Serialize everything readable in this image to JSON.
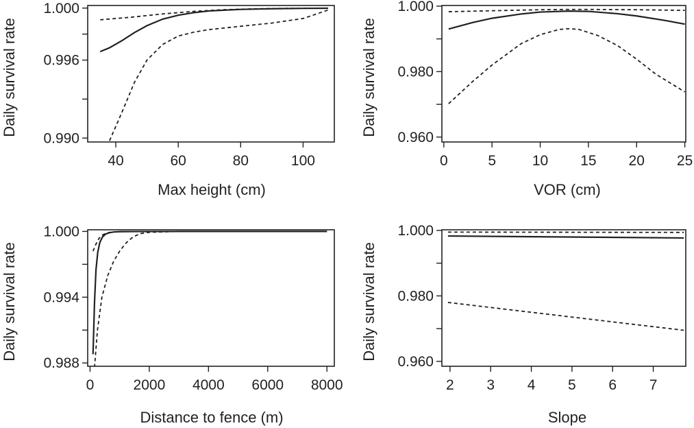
{
  "colors": {
    "ink": "#231f20",
    "background": "#ffffff"
  },
  "chart_data": [
    {
      "type": "line",
      "title": "",
      "xlabel": "Max height (cm)",
      "ylabel": "Daily survival rate",
      "xlim": [
        31,
        110
      ],
      "ylim": [
        0.9897,
        1.0002
      ],
      "x_ticks": [
        40,
        60,
        80,
        100
      ],
      "y_ticks": [
        0.99,
        0.993,
        0.996,
        0.998,
        1.0
      ],
      "y_tick_labels": [
        "0.990",
        "",
        "0.996",
        "",
        "1.000"
      ],
      "grid": false,
      "series": [
        {
          "role": "estimate",
          "style": "solid",
          "x": [
            35,
            38,
            42,
            46,
            50,
            55,
            60,
            65,
            70,
            80,
            90,
            100,
            108
          ],
          "y": [
            0.99665,
            0.99695,
            0.9975,
            0.99812,
            0.99865,
            0.99915,
            0.99945,
            0.99965,
            0.99978,
            0.9999,
            0.99995,
            0.99998,
            0.99999
          ]
        },
        {
          "role": "upper-ci",
          "style": "dashed",
          "x": [
            35,
            45,
            55,
            65,
            75,
            85,
            95,
            108
          ],
          "y": [
            0.9991,
            0.9993,
            0.99955,
            0.99975,
            0.99988,
            0.99995,
            0.99998,
            0.99999
          ]
        },
        {
          "role": "lower-ci",
          "style": "dashed",
          "x": [
            38,
            42,
            46,
            50,
            55,
            60,
            65,
            70,
            80,
            90,
            100,
            108
          ],
          "y": [
            0.9898,
            0.992,
            0.9943,
            0.996,
            0.9972,
            0.99785,
            0.99815,
            0.99835,
            0.9986,
            0.99885,
            0.9992,
            0.99985
          ]
        }
      ]
    },
    {
      "type": "line",
      "title": "",
      "xlabel": "VOR (cm)",
      "ylabel": "Daily survival rate",
      "xlim": [
        -0.2,
        25.1
      ],
      "ylim": [
        0.9585,
        1.0002
      ],
      "x_ticks": [
        0,
        5,
        10,
        15,
        20,
        25
      ],
      "y_ticks": [
        0.96,
        0.97,
        0.98,
        0.99,
        1.0
      ],
      "y_tick_labels": [
        "0.960",
        "",
        "0.980",
        "",
        "1.000"
      ],
      "grid": false,
      "series": [
        {
          "role": "estimate",
          "style": "solid",
          "x": [
            0.5,
            3,
            5,
            8,
            10,
            13,
            15,
            18,
            20,
            23,
            25
          ],
          "y": [
            0.993,
            0.995,
            0.9963,
            0.9976,
            0.9982,
            0.9985,
            0.9984,
            0.9977,
            0.997,
            0.9956,
            0.9945
          ]
        },
        {
          "role": "upper-ci",
          "style": "dashed",
          "x": [
            0.5,
            5,
            10,
            13,
            15,
            20,
            25
          ],
          "y": [
            0.9983,
            0.9986,
            0.9989,
            0.999,
            0.999,
            0.9989,
            0.9987
          ]
        },
        {
          "role": "lower-ci",
          "style": "dashed",
          "x": [
            0.5,
            3,
            5,
            8,
            10,
            12,
            13,
            14,
            16,
            18,
            20,
            22,
            25
          ],
          "y": [
            0.9702,
            0.977,
            0.982,
            0.9885,
            0.9913,
            0.9929,
            0.9931,
            0.9929,
            0.991,
            0.988,
            0.9838,
            0.9792,
            0.9738
          ]
        }
      ]
    },
    {
      "type": "line",
      "title": "",
      "xlabel": "Distance to fence (m)",
      "ylabel": "Daily survival rate",
      "xlim": [
        -80,
        8250
      ],
      "ylim": [
        0.9877,
        1.00015
      ],
      "x_ticks": [
        0,
        2000,
        4000,
        6000,
        8000
      ],
      "y_ticks": [
        0.988,
        0.991,
        0.994,
        0.997,
        1.0
      ],
      "y_tick_labels": [
        "0.988",
        "",
        "0.994",
        "",
        "1.000"
      ],
      "grid": false,
      "series": [
        {
          "role": "estimate",
          "style": "solid",
          "x": [
            100,
            150,
            200,
            260,
            330,
            420,
            520,
            650,
            800,
            1000,
            1500,
            3000,
            8000
          ],
          "y": [
            0.9888,
            0.9935,
            0.9965,
            0.9981,
            0.999,
            0.9995,
            0.99975,
            0.99988,
            0.99995,
            0.99998,
            0.99999,
            1.0,
            1.0
          ]
        },
        {
          "role": "upper-ci",
          "style": "dashed",
          "x": [
            100,
            200,
            300,
            400,
            550,
            750,
            1000,
            1500,
            8000
          ],
          "y": [
            0.9982,
            0.99885,
            0.99935,
            0.99965,
            0.99985,
            0.99995,
            0.99998,
            1.0,
            1.0
          ]
        },
        {
          "role": "lower-ci",
          "style": "dashed",
          "x": [
            150,
            250,
            400,
            600,
            800,
            1000,
            1200,
            1450,
            1700,
            2000,
            3000,
            8000
          ],
          "y": [
            0.9876,
            0.991,
            0.994,
            0.996,
            0.9973,
            0.9982,
            0.9989,
            0.9995,
            0.9998,
            0.99992,
            1.0,
            1.0
          ]
        }
      ]
    },
    {
      "type": "line",
      "title": "",
      "xlabel": "Slope",
      "ylabel": "Daily survival rate",
      "xlim": [
        1.8,
        7.8
      ],
      "ylim": [
        0.9585,
        1.0002
      ],
      "x_ticks": [
        2,
        3,
        4,
        5,
        6,
        7
      ],
      "y_ticks": [
        0.96,
        0.97,
        0.98,
        0.99,
        1.0
      ],
      "y_tick_labels": [
        "0.960",
        "",
        "0.980",
        "",
        "1.000"
      ],
      "grid": false,
      "series": [
        {
          "role": "estimate",
          "style": "solid",
          "x": [
            1.95,
            7.75
          ],
          "y": [
            0.9983,
            0.9977
          ]
        },
        {
          "role": "upper-ci",
          "style": "dashed",
          "x": [
            1.95,
            7.75
          ],
          "y": [
            0.9995,
            0.9994
          ]
        },
        {
          "role": "lower-ci",
          "style": "dashed",
          "x": [
            1.95,
            7.75
          ],
          "y": [
            0.978,
            0.9695
          ]
        }
      ]
    }
  ]
}
